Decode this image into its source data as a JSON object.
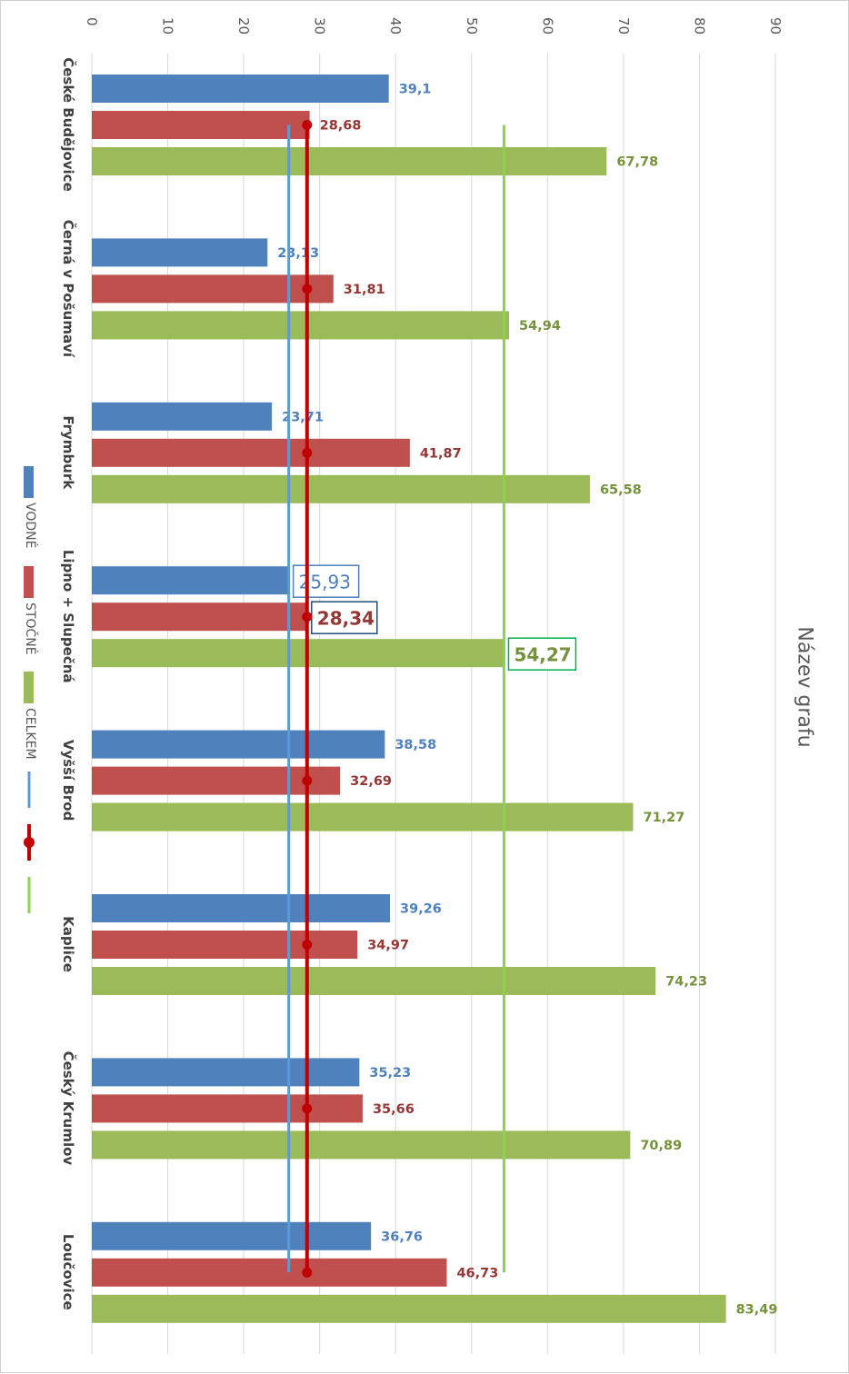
{
  "chart_data": {
    "type": "bar",
    "orientation": "horizontal",
    "title": "Název grafu",
    "categories": [
      "České Budějovice",
      "Černá v Pošumaví",
      "Frymburk",
      "Lipno + Slupečná",
      "Vyšší Brod",
      "Kaplice",
      "Český Krumlov",
      "Loučovice"
    ],
    "series": [
      {
        "name": "VODNÉ",
        "color": "#4f81bd",
        "label_color": "#4f81bd",
        "values": [
          39.1,
          23.13,
          23.71,
          25.93,
          38.58,
          39.26,
          35.23,
          36.76
        ],
        "labels": [
          "39,1",
          "23,13",
          "23,71",
          "25,93",
          "38,58",
          "39,26",
          "35,23",
          "36,76"
        ]
      },
      {
        "name": "STOČNÉ",
        "color": "#c0504d",
        "label_color": "#953735",
        "values": [
          28.68,
          31.81,
          41.87,
          28.34,
          32.69,
          34.97,
          35.66,
          46.73
        ],
        "labels": [
          "28,68",
          "31,81",
          "41,87",
          "28,34",
          "32,69",
          "34,97",
          "35,66",
          "46,73"
        ]
      },
      {
        "name": "CELKEM",
        "color": "#9bbb59",
        "label_color": "#76923c",
        "values": [
          67.78,
          54.94,
          65.58,
          54.27,
          71.27,
          74.23,
          70.89,
          83.49
        ],
        "labels": [
          "67,78",
          "54,94",
          "65,58",
          "54,27",
          "71,27",
          "74,23",
          "70,89",
          "83,49"
        ]
      }
    ],
    "reference_lines": [
      {
        "series": "VODNÉ",
        "value": 25.93,
        "color": "#5b9bd5",
        "marker": "none"
      },
      {
        "series": "STOČNÉ",
        "value": 28.34,
        "color": "#c00000",
        "marker": "circle"
      },
      {
        "series": "CELKEM",
        "value": 54.27,
        "color": "#92d050",
        "marker": "none"
      }
    ],
    "highlighted_category": "Lipno + Slupečná",
    "highlight_box_colors": [
      "#4f81bd",
      "#1f4e79",
      "#00b050"
    ],
    "axis": {
      "min": 0,
      "max": 90,
      "step": 10,
      "ticks": [
        "0",
        "10",
        "20",
        "30",
        "40",
        "50",
        "60",
        "70",
        "80",
        "90"
      ]
    },
    "grid": true,
    "legend_position": "left"
  }
}
